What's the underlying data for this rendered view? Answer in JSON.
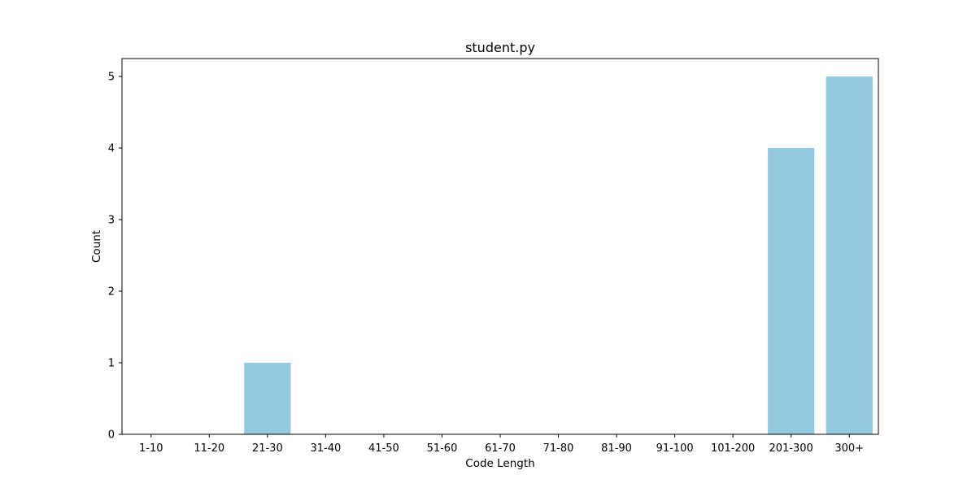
{
  "chart_data": {
    "type": "bar",
    "title": "student.py",
    "xlabel": "Code Length",
    "ylabel": "Count",
    "categories": [
      "1-10",
      "11-20",
      "21-30",
      "31-40",
      "41-50",
      "51-60",
      "61-70",
      "71-80",
      "81-90",
      "91-100",
      "101-200",
      "201-300",
      "300+"
    ],
    "values": [
      0,
      0,
      1,
      0,
      0,
      0,
      0,
      0,
      0,
      0,
      0,
      4,
      5
    ],
    "ylim": [
      0,
      5.25
    ],
    "yticks": [
      0,
      1,
      2,
      3,
      4,
      5
    ],
    "grid": false,
    "bar_color": "#92c9df"
  }
}
